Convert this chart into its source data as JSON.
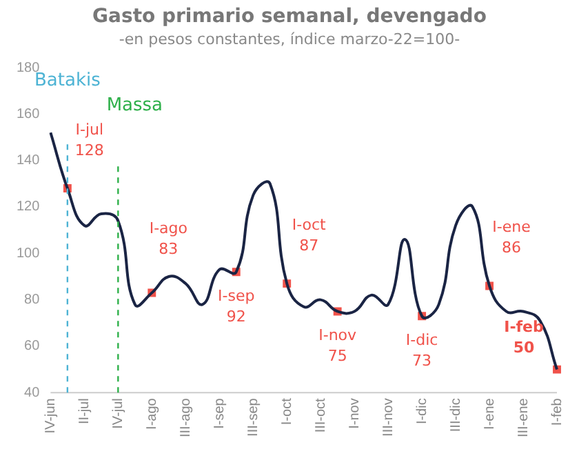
{
  "chart_data": {
    "type": "line",
    "title": "Gasto primario semanal, devengado",
    "subtitle": "-en pesos constantes, índice marzo-22=100-",
    "categories": [
      "IV-jun",
      null,
      "II-jul",
      null,
      "IV-jul",
      null,
      "I-ago",
      null,
      "III-ago",
      null,
      "I-sep",
      null,
      "III-sep",
      null,
      "I-oct",
      null,
      "III-oct",
      null,
      "I-nov",
      null,
      "III-nov",
      null,
      "I-dic",
      null,
      "III-dic",
      null,
      "I-ene",
      null,
      "III-ene",
      null,
      "I-feb"
    ],
    "series": [
      {
        "color": "#1a2444",
        "values": [
          152,
          128,
          112,
          117,
          114,
          78,
          83,
          90,
          87,
          78,
          93,
          92,
          125,
          130,
          87,
          77,
          80,
          75,
          75,
          82,
          78,
          106,
          73,
          78,
          112,
          120,
          86,
          75,
          75,
          71,
          50
        ]
      },
      {
        "type": "scatter",
        "marker": "square",
        "color": "#f0524a",
        "values": [
          null,
          128,
          null,
          null,
          null,
          null,
          83,
          null,
          null,
          null,
          null,
          92,
          null,
          null,
          87,
          null,
          null,
          75,
          null,
          null,
          null,
          null,
          73,
          null,
          null,
          null,
          86,
          null,
          null,
          null,
          50
        ],
        "value_labels": [
          null,
          "I-jul\n128",
          null,
          null,
          null,
          null,
          "I-ago\n83",
          null,
          null,
          null,
          null,
          "I-sep\n92",
          null,
          null,
          "I-oct\n87",
          null,
          null,
          "I-nov\n75",
          null,
          null,
          null,
          null,
          "I-dic\n73",
          null,
          null,
          null,
          "I-ene\n86",
          null,
          null,
          null,
          "I-feb\n50"
        ]
      }
    ],
    "ylim": [
      40,
      180
    ],
    "yticks": [
      40,
      60,
      80,
      100,
      120,
      140,
      160,
      180
    ],
    "grid": false,
    "legend": false,
    "marker": "none",
    "annotations": [
      "Batakis"
    ],
    "ref_lines": [
      {
        "axis": "x",
        "value": "IV-jul",
        "label": "Massa",
        "color": "#2eb04a",
        "line_style": "dashed"
      }
    ]
  }
}
